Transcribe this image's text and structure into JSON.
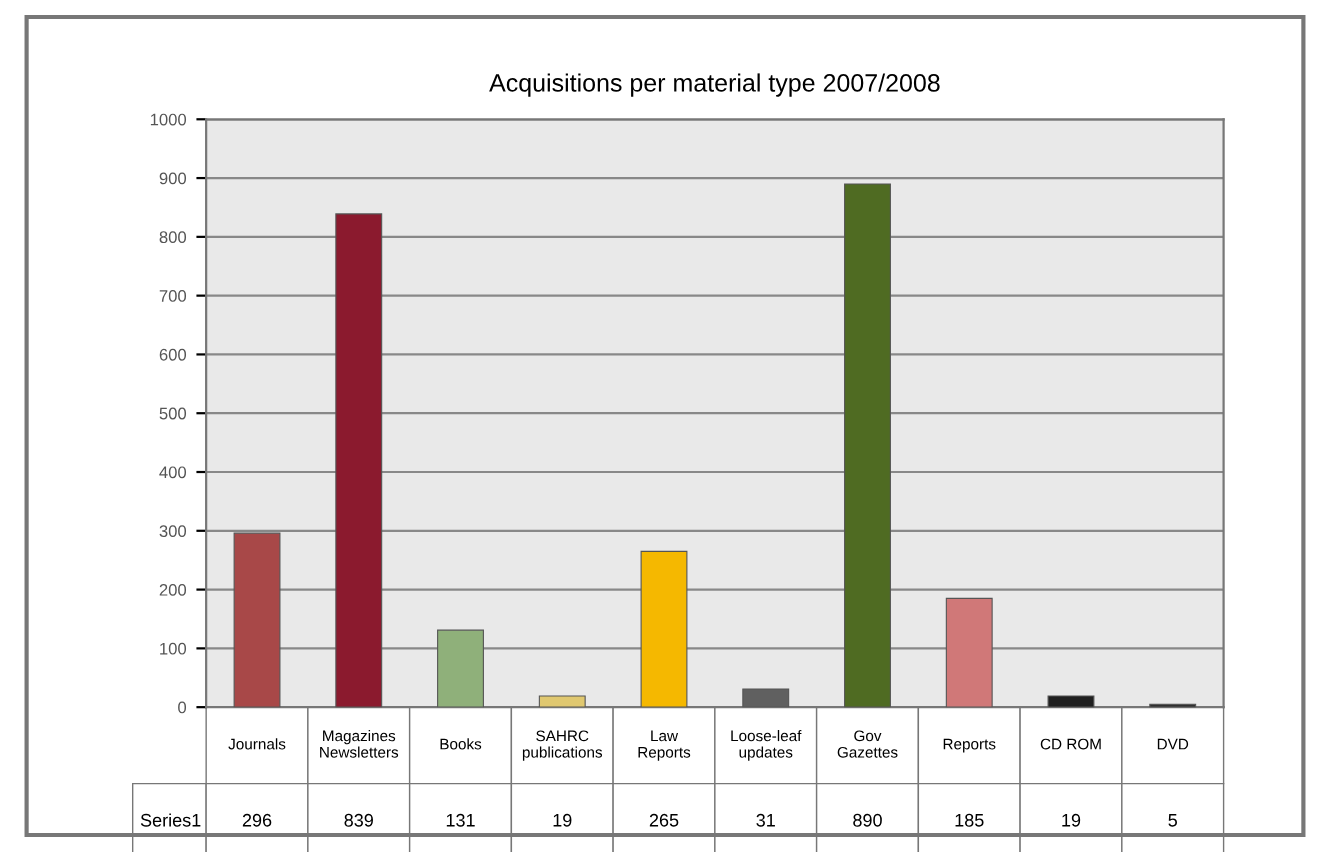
{
  "chart_data": {
    "type": "bar",
    "title": "Acquisitions per material type 2007/2008",
    "categories": [
      "Journals",
      "Magazines Newsletters",
      "Books",
      "SAHRC publications",
      "Law Reports",
      "Loose-leaf updates",
      "Gov Gazettes",
      "Reports",
      "CD ROM",
      "DVD"
    ],
    "series": [
      {
        "name": "Series1",
        "values": [
          296,
          839,
          131,
          19,
          265,
          31,
          890,
          185,
          19,
          5
        ],
        "colors": [
          "#a84848",
          "#8b1a2e",
          "#8fb07a",
          "#e0c870",
          "#f5b800",
          "#606060",
          "#4f6b22",
          "#d07878",
          "#202020",
          "#303030"
        ]
      }
    ],
    "ylim": [
      0,
      1000
    ],
    "yticks": [
      0,
      100,
      200,
      300,
      400,
      500,
      600,
      700,
      800,
      900,
      1000
    ],
    "grid": "y",
    "data_labels": true
  }
}
